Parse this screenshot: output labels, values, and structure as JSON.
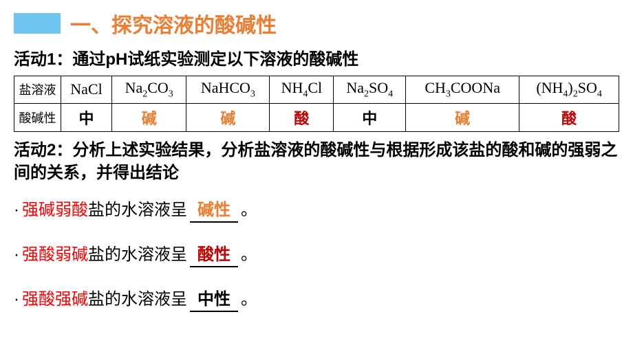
{
  "header": {
    "title": "一、探究溶液的酸碱性",
    "block_color": "#6fc5f0",
    "title_color": "#ed7d31",
    "title_fontsize": 30
  },
  "activity1": {
    "title": "活动1：通过pH试纸实验测定以下溶液的酸碱性"
  },
  "table": {
    "row_labels": [
      "盐溶液",
      "酸碱性"
    ],
    "columns": [
      {
        "formula_html": "NaCl",
        "result": "中",
        "result_type": "neutral"
      },
      {
        "formula_html": "Na<sub>2</sub>CO<sub>3</sub>",
        "result": "碱",
        "result_type": "base"
      },
      {
        "formula_html": "NaHCO<sub>3</sub>",
        "result": "碱",
        "result_type": "base"
      },
      {
        "formula_html": "NH<sub>4</sub>Cl",
        "result": "酸",
        "result_type": "acid"
      },
      {
        "formula_html": "Na<sub>2</sub>SO<sub>4</sub>",
        "result": "中",
        "result_type": "neutral"
      },
      {
        "formula_html": "CH<sub>3</sub>COONa",
        "result": "碱",
        "result_type": "base"
      },
      {
        "formula_html": "(NH<sub>4</sub>)<sub>2</sub>SO<sub>4</sub>",
        "result": "酸",
        "result_type": "acid"
      }
    ],
    "colors": {
      "neutral": "#000000",
      "base": "#ed7d31",
      "acid": "#c00000"
    },
    "border_color": "#000000"
  },
  "activity2": {
    "title": "活动2：分析上述实验结果，分析盐溶液的酸碱性与根据形成该盐的酸和碱的强弱之间的关系，并得出结论"
  },
  "conclusions": [
    {
      "prefix": "强碱弱酸",
      "middle": "盐的水溶液呈",
      "fill": "碱性",
      "fill_type": "base",
      "suffix": "。"
    },
    {
      "prefix": "强酸弱碱",
      "middle": "盐的水溶液呈",
      "fill": "酸性",
      "fill_type": "acid",
      "suffix": "。"
    },
    {
      "prefix": "强酸强碱",
      "middle": "盐的水溶液呈",
      "fill": "中性",
      "fill_type": "neutral",
      "suffix": "。"
    }
  ],
  "typography": {
    "body_fontsize": 24,
    "table_fontsize": 22,
    "rowlabel_fontsize": 18,
    "font_family": "Microsoft YaHei, SimHei, sans-serif",
    "formula_font": "Times New Roman, serif"
  }
}
